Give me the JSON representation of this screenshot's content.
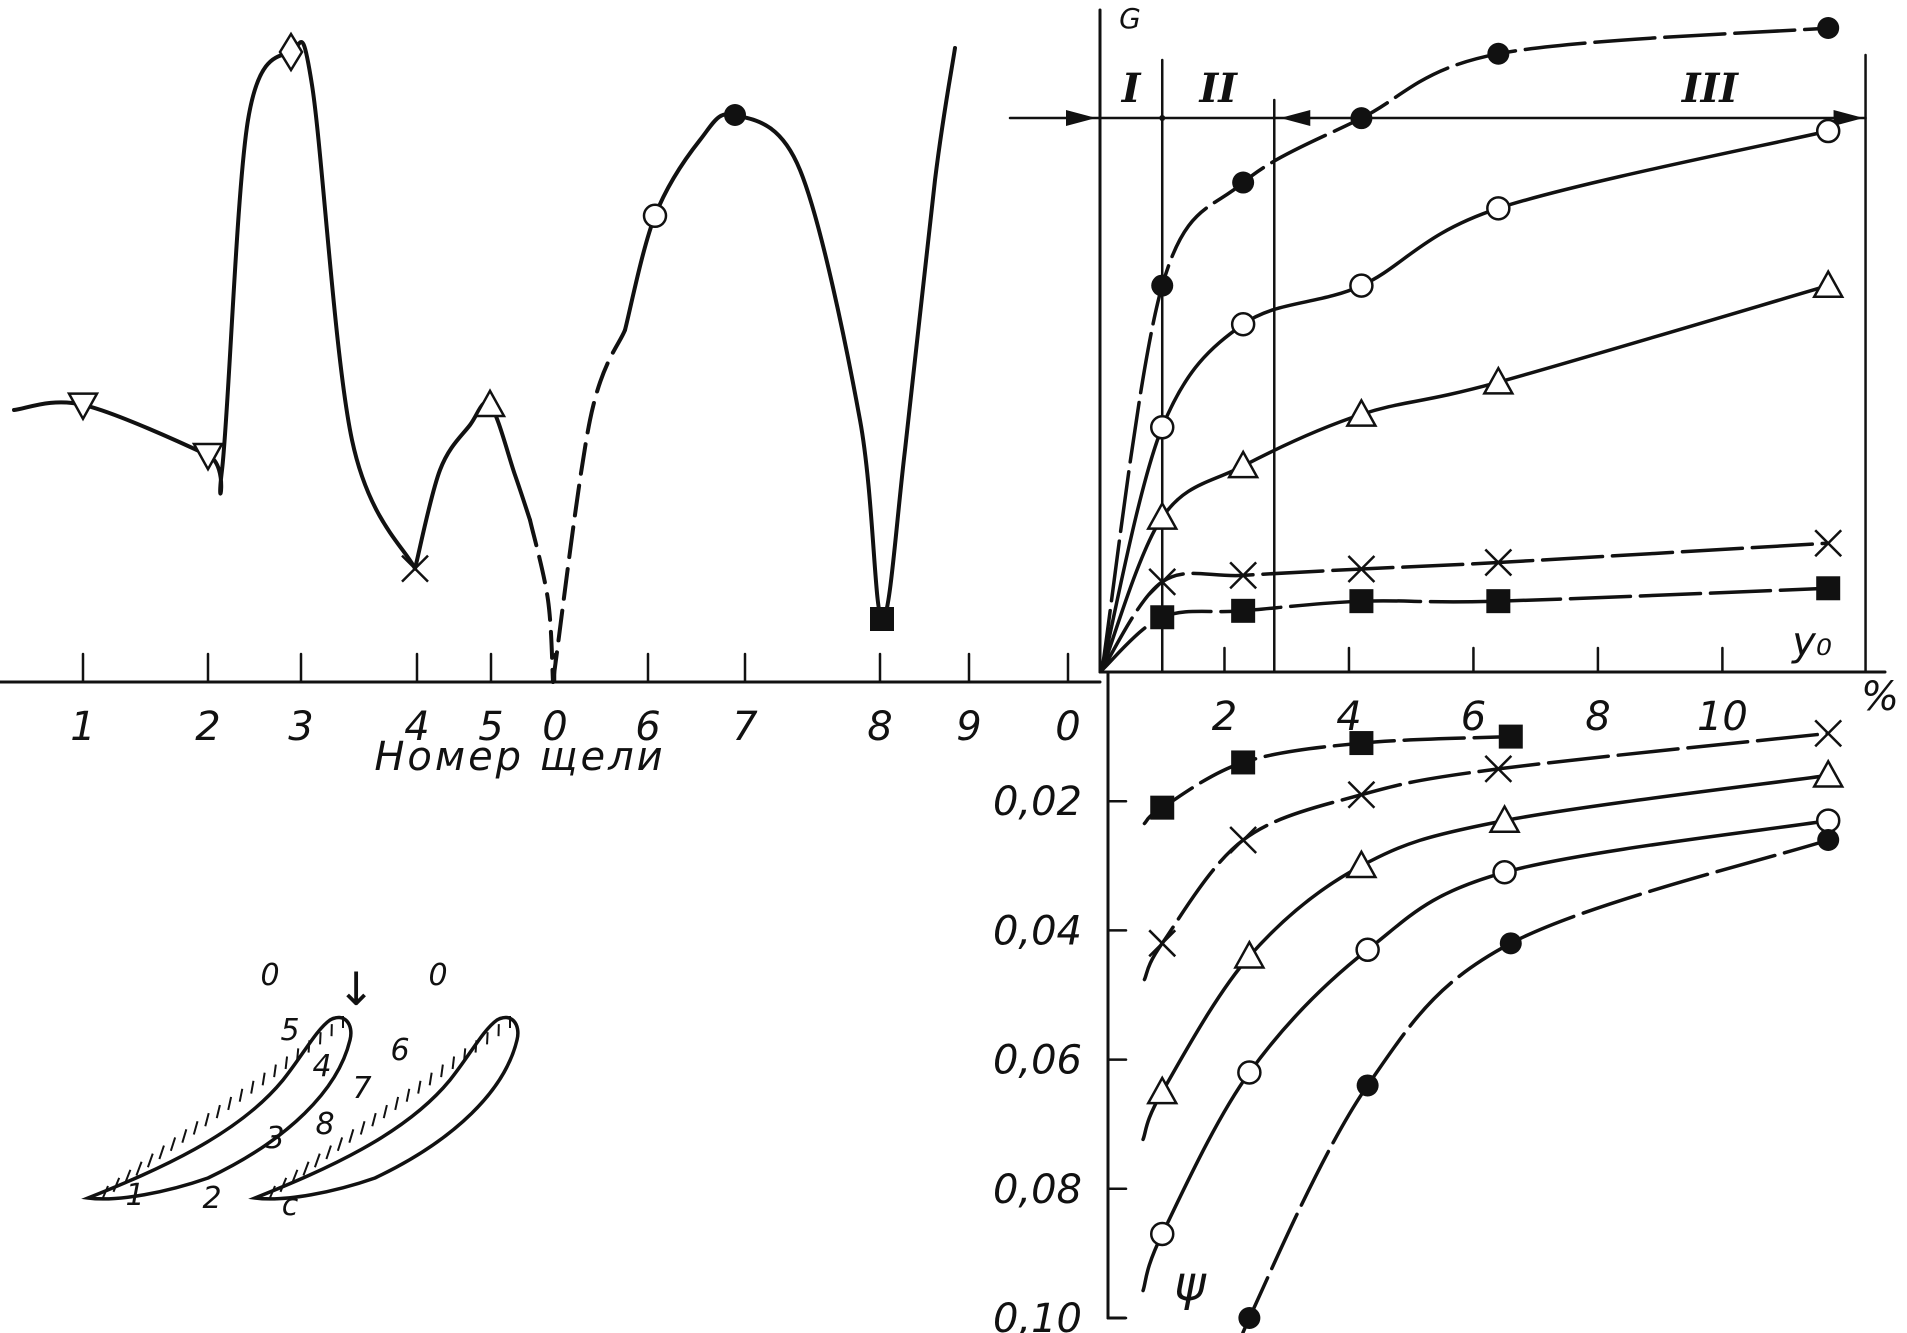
{
  "chart_data": [
    {
      "type": "line",
      "xlabel": "Номер щели",
      "ylabel": "",
      "tick_labels": [
        "1",
        "2",
        "3",
        "4",
        "5",
        "0",
        "6",
        "7",
        "8",
        "9",
        "0"
      ],
      "points": [
        {
          "slot": "1",
          "marker": "triangle-down",
          "value": 0.44
        },
        {
          "slot": "2",
          "marker": "triangle-down",
          "value": 0.36
        },
        {
          "slot": "3",
          "marker": "diamond",
          "value": 1.0
        },
        {
          "slot": "4",
          "marker": "cross",
          "value": 0.18
        },
        {
          "slot": "5",
          "marker": "triangle-up",
          "value": 0.44
        },
        {
          "slot": "0",
          "marker": "none",
          "value": 0.0
        },
        {
          "slot": "6",
          "marker": "circle-open",
          "value": 0.74
        },
        {
          "slot": "7",
          "marker": "circle-filled",
          "value": 0.9
        },
        {
          "slot": "8",
          "marker": "square-filled",
          "value": 0.1
        }
      ]
    },
    {
      "type": "line",
      "upper_axis": {
        "ylabel": "G",
        "xlabel": "y₀",
        "unit": "%"
      },
      "lower_axis": {
        "ylabel": "ψ",
        "yticks": [
          "0,02",
          "0,04",
          "0,06",
          "0,08",
          "0,10"
        ],
        "ylim": [
          0,
          0.1
        ]
      },
      "xticks": [
        "2",
        "4",
        "6",
        "8",
        "10"
      ],
      "xlim": [
        0,
        12.5
      ],
      "regions": [
        "I",
        "II",
        "III"
      ],
      "upper_series": [
        {
          "marker": "circle-filled",
          "x": [
            1,
            2.3,
            4.2,
            6.4,
            11.7
          ],
          "y": [
            0.6,
            0.76,
            0.86,
            0.96,
            1.0
          ]
        },
        {
          "marker": "circle-open",
          "x": [
            1,
            2.3,
            4.2,
            6.4,
            11.7
          ],
          "y": [
            0.38,
            0.54,
            0.6,
            0.72,
            0.84
          ]
        },
        {
          "marker": "triangle-up",
          "x": [
            1,
            2.3,
            4.2,
            6.4,
            11.7
          ],
          "y": [
            0.24,
            0.32,
            0.4,
            0.45,
            0.6
          ]
        },
        {
          "marker": "cross",
          "x": [
            1,
            2.3,
            4.2,
            6.4,
            11.7
          ],
          "y": [
            0.14,
            0.15,
            0.16,
            0.17,
            0.2
          ]
        },
        {
          "marker": "square-filled",
          "x": [
            1,
            2.3,
            4.2,
            6.4,
            11.7
          ],
          "y": [
            0.085,
            0.095,
            0.11,
            0.11,
            0.13
          ]
        }
      ],
      "lower_series": [
        {
          "marker": "square-filled",
          "x": [
            1,
            2.3,
            4.2,
            6.6
          ],
          "y": [
            0.021,
            0.014,
            0.011,
            0.01
          ]
        },
        {
          "marker": "cross",
          "x": [
            1,
            2.3,
            4.2,
            6.4,
            11.7
          ],
          "y": [
            0.042,
            0.026,
            0.019,
            0.015,
            0.0095
          ]
        },
        {
          "marker": "triangle-up",
          "x": [
            1,
            2.4,
            4.2,
            6.5,
            11.7
          ],
          "y": [
            0.065,
            0.044,
            0.03,
            0.023,
            0.016
          ]
        },
        {
          "marker": "circle-open",
          "x": [
            1,
            2.4,
            4.3,
            6.5,
            11.7
          ],
          "y": [
            0.087,
            0.062,
            0.043,
            0.031,
            0.023
          ]
        },
        {
          "marker": "circle-filled",
          "x": [
            2.4,
            4.3,
            6.6,
            11.7
          ],
          "y": [
            0.1,
            0.064,
            0.042,
            0.026
          ]
        }
      ]
    }
  ],
  "sketch": {
    "flow_marker": "↓",
    "labels": [
      "0",
      "0",
      "1",
      "2",
      "3",
      "4",
      "5",
      "6",
      "7",
      "8",
      "c"
    ]
  }
}
